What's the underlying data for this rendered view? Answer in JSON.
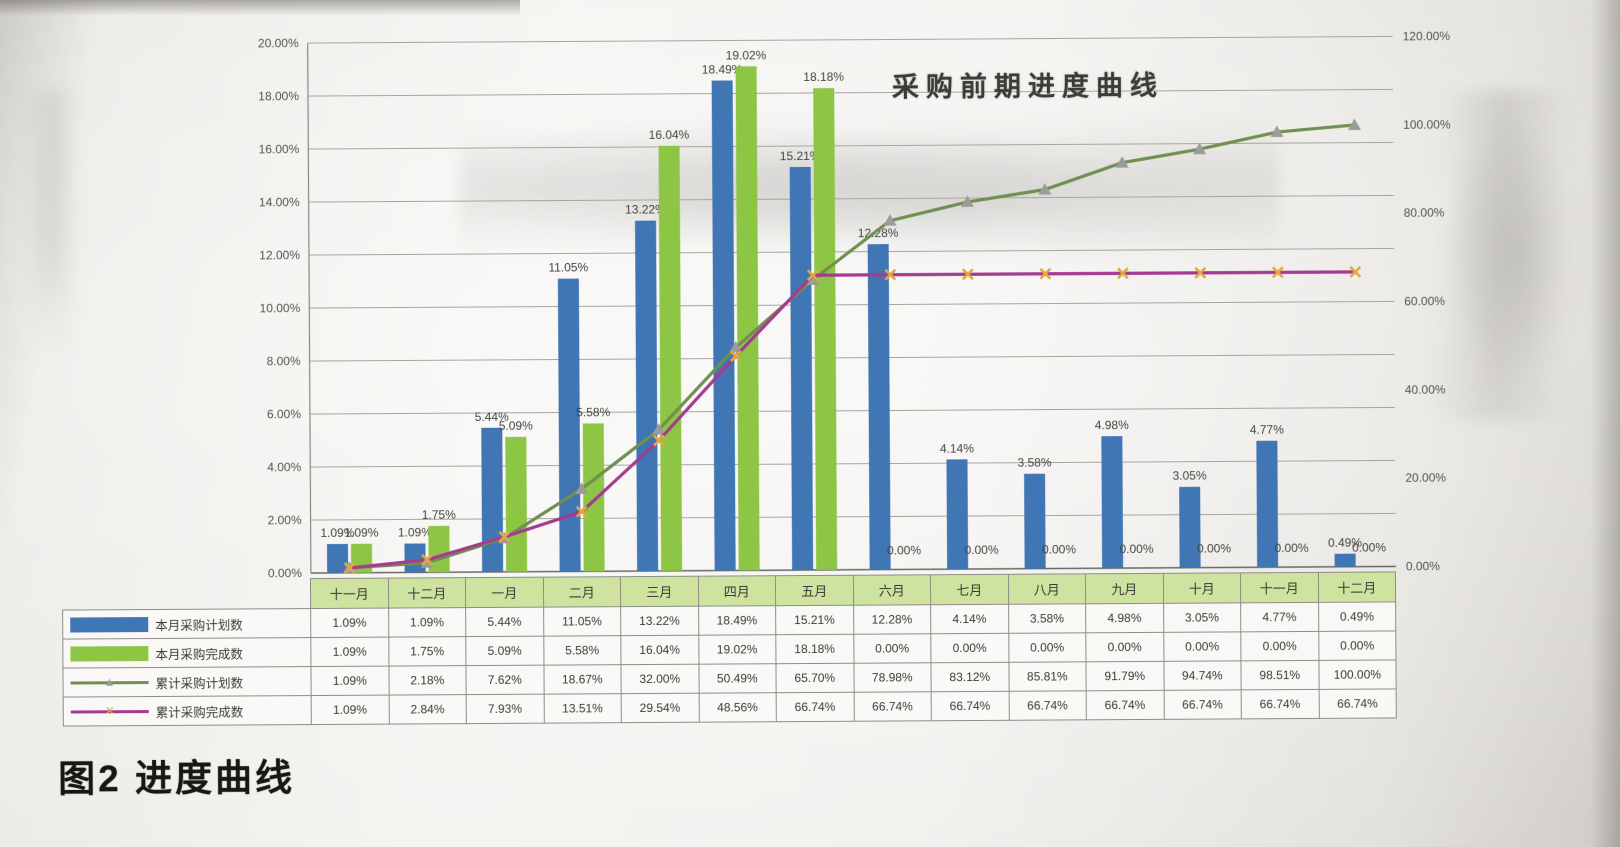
{
  "figure": {
    "title": "采购前期进度曲线",
    "caption": "图2 进度曲线"
  },
  "chart_data": {
    "type": "bar",
    "title": "采购前期进度曲线",
    "categories": [
      "十一月",
      "十二月",
      "一月",
      "二月",
      "三月",
      "四月",
      "五月",
      "六月",
      "七月",
      "八月",
      "九月",
      "十月",
      "十一月",
      "十二月"
    ],
    "series": [
      {
        "key": "monthly-plan",
        "name": "本月采购计划数",
        "type": "bar",
        "axis": "left",
        "color": "#3d76b6",
        "values": [
          1.09,
          1.09,
          5.44,
          11.05,
          13.22,
          18.49,
          15.21,
          12.28,
          4.14,
          3.58,
          4.98,
          3.05,
          4.77,
          0.49
        ]
      },
      {
        "key": "monthly-actual",
        "name": "本月采购完成数",
        "type": "bar",
        "axis": "left",
        "color": "#8cc63f",
        "values": [
          1.09,
          1.75,
          5.09,
          5.58,
          16.04,
          19.02,
          18.18,
          0.0,
          0.0,
          0.0,
          0.0,
          0.0,
          0.0,
          0.0
        ]
      },
      {
        "key": "cumulative-plan",
        "name": "累计采购计划数",
        "type": "line",
        "axis": "right",
        "color": "#6f8f4f",
        "marker": "triangle",
        "marker_color": "#9b9b99",
        "values": [
          1.09,
          2.18,
          7.62,
          18.67,
          32.0,
          50.49,
          65.7,
          78.98,
          83.12,
          85.81,
          91.79,
          94.74,
          98.51,
          100.0
        ]
      },
      {
        "key": "cumulative-actual",
        "name": "累计采购完成数",
        "type": "line",
        "axis": "right",
        "color": "#a83a92",
        "marker": "x",
        "marker_color": "#e5a93c",
        "values": [
          1.09,
          2.84,
          7.93,
          13.51,
          29.54,
          48.56,
          66.74,
          66.74,
          66.74,
          66.74,
          66.74,
          66.74,
          66.74,
          66.74
        ]
      }
    ],
    "left_axis": {
      "min": 0,
      "max": 20,
      "step": 2,
      "tick_labels": [
        "0.00%",
        "2.00%",
        "4.00%",
        "6.00%",
        "8.00%",
        "10.00%",
        "12.00%",
        "14.00%",
        "16.00%",
        "18.00%",
        "20.00%"
      ]
    },
    "right_axis": {
      "min": 0,
      "max": 120,
      "step": 20,
      "tick_labels": [
        "0.00%",
        "20.00%",
        "40.00%",
        "60.00%",
        "80.00%",
        "100.00%",
        "120.00%"
      ]
    },
    "grid": true,
    "legend_position": "table-left",
    "ylabel": "",
    "xlabel": ""
  }
}
